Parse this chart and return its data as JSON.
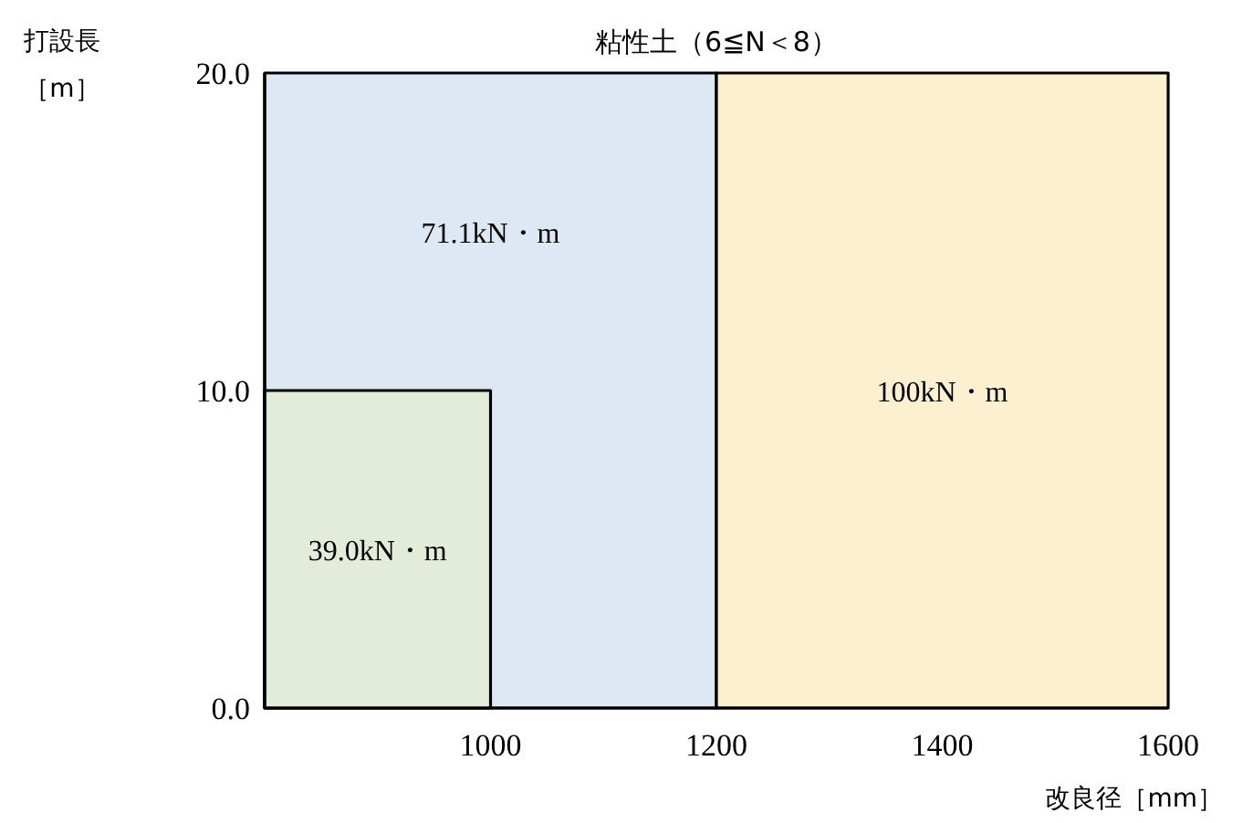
{
  "chart_data": {
    "type": "area",
    "title": "粘性土（6≦N＜8）",
    "xlabel": "改良径［mm］",
    "ylabel": "打設長［m］",
    "xlim": [
      800,
      1600
    ],
    "xticks": [
      1000,
      1200,
      1400,
      1600
    ],
    "ylim": [
      0,
      20
    ],
    "yticks": [
      {
        "value": 0,
        "label": "0.0"
      },
      {
        "value": 10,
        "label": "10.0"
      },
      {
        "value": 20,
        "label": "20.0"
      }
    ],
    "series": [
      {
        "name": "71.1kN・m",
        "color": "#dde8f4",
        "x": [
          800,
          1200
        ],
        "values": [
          20,
          20
        ]
      },
      {
        "name": "100kN・m",
        "color": "#fdf0d0",
        "x": [
          1200,
          1600
        ],
        "values": [
          20,
          20
        ]
      },
      {
        "name": "39.0kN・m",
        "color": "#e3ecd9",
        "x": [
          800,
          1000
        ],
        "values": [
          10,
          10
        ]
      }
    ]
  }
}
